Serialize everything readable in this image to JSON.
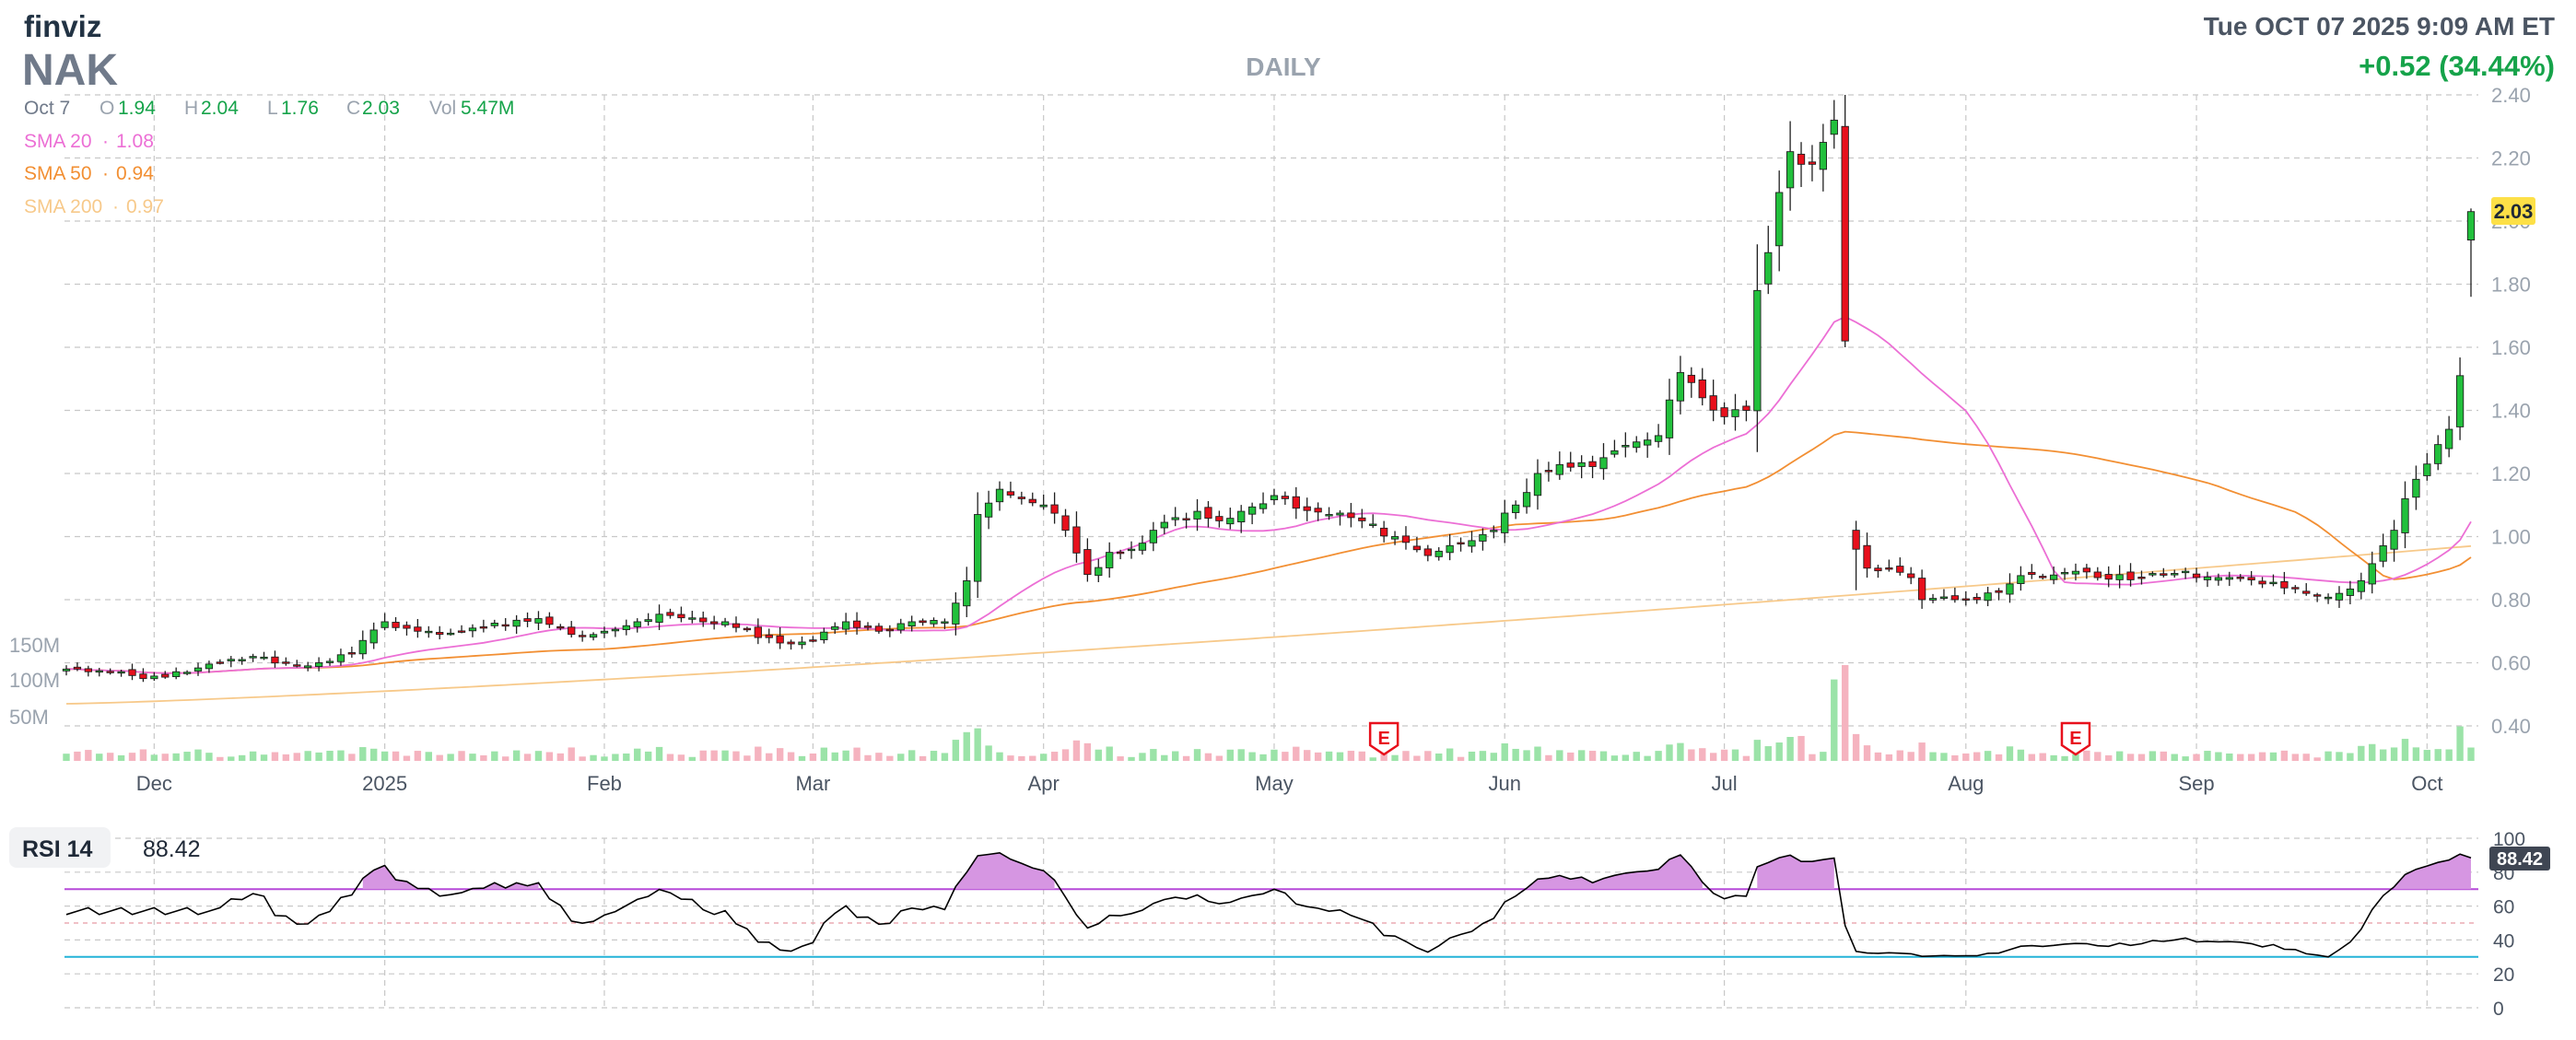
{
  "header": {
    "brand": "finviz",
    "ticker": "NAK",
    "timeframe": "DAILY",
    "datetime": "Tue OCT 07 2025 9:09 AM ET",
    "change": "+0.52 (34.44%)"
  },
  "ohlc": {
    "date": "Oct 7",
    "o_label": "O",
    "o": "1.94",
    "h_label": "H",
    "h": "2.04",
    "l_label": "L",
    "l": "1.76",
    "c_label": "C",
    "c": "2.03",
    "vol_label": "Vol",
    "vol": "5.47M"
  },
  "legend": {
    "sma20_label": "SMA 20",
    "sma20": "1.08",
    "sma50_label": "SMA 50",
    "sma50": "0.94",
    "sma200_label": "SMA 200",
    "sma200": "0.97",
    "sep": "·"
  },
  "rsi": {
    "label": "RSI 14",
    "value": "88.42",
    "ticks": [
      "100",
      "80",
      "60",
      "40",
      "20",
      "0"
    ]
  },
  "earnings_marker": "E",
  "colors": {
    "up": "#22c03c",
    "down": "#e8101c",
    "sma20": "#ec6fd5",
    "sma50": "#f28f33",
    "sma200": "#f7c98a",
    "vol_up": "#9be3a8",
    "vol_down": "#f5b3bf",
    "rsi_line": "#000000",
    "rsi_fill": "#d696e2",
    "rsi_70": "#b64ad8",
    "rsi_30": "#23b3d8",
    "grid": "#c8c8c8",
    "price_tag": "#fde047",
    "accent_green": "#16a34a",
    "text_gray": "#707a8a"
  },
  "chart_data": [
    {
      "type": "candlestick",
      "title": "NAK",
      "ylim": [
        0.3,
        2.4
      ],
      "y_ticks": [
        "2.40",
        "2.20",
        "2.00",
        "1.80",
        "1.60",
        "1.40",
        "1.20",
        "1.00",
        "0.80",
        "0.60",
        "0.40"
      ],
      "x_tick_labels": [
        "Dec",
        "2025",
        "Feb",
        "Mar",
        "Apr",
        "May",
        "Jun",
        "Jul",
        "Aug",
        "Sep",
        "Oct"
      ],
      "volume_ticks": [
        "150M",
        "100M",
        "50M"
      ],
      "last_price": "2.03",
      "earnings_dates": [
        "May 15 2025",
        "Aug 15 2025"
      ],
      "anchors": [
        [
          "Nov 19 2024",
          0.58
        ],
        [
          "Nov 25 2024",
          0.57
        ],
        [
          "Nov 29 2024",
          0.55
        ],
        [
          "Dec 5 2024",
          0.57
        ],
        [
          "Dec 10 2024",
          0.6
        ],
        [
          "Dec 13 2024",
          0.62
        ],
        [
          "Dec 19 2024",
          0.59
        ],
        [
          "Dec 23 2024",
          0.6
        ],
        [
          "Dec 27 2024",
          0.63
        ],
        [
          "Jan 2 2025",
          0.73
        ],
        [
          "Jan 7 2025",
          0.7
        ],
        [
          "Jan 10 2025",
          0.69
        ],
        [
          "Jan 15 2025",
          0.71
        ],
        [
          "Jan 20 2025",
          0.72
        ],
        [
          "Jan 24 2025",
          0.74
        ],
        [
          "Jan 29 2025",
          0.69
        ],
        [
          "Feb 3 2025",
          0.7
        ],
        [
          "Feb 6 2025",
          0.73
        ],
        [
          "Feb 11 2025",
          0.75
        ],
        [
          "Feb 14 2025",
          0.73
        ],
        [
          "Feb 19 2025",
          0.73
        ],
        [
          "Feb 24 2025",
          0.68
        ],
        [
          "Feb 27 2025",
          0.66
        ],
        [
          "Mar 3 2025",
          0.67
        ],
        [
          "Mar 6 2025",
          0.73
        ],
        [
          "Mar 11 2025",
          0.7
        ],
        [
          "Mar 14 2025",
          0.73
        ],
        [
          "Mar 19 2025",
          0.73
        ],
        [
          "Mar 21 2025",
          0.86
        ],
        [
          "Mar 24 2025",
          1.07
        ],
        [
          "Mar 26 2025",
          1.15
        ],
        [
          "Mar 28 2025",
          1.12
        ],
        [
          "Apr 1 2025",
          1.1
        ],
        [
          "Apr 3 2025",
          1.02
        ],
        [
          "Apr 7 2025",
          0.88
        ],
        [
          "Apr 9 2025",
          0.95
        ],
        [
          "Apr 11 2025",
          0.96
        ],
        [
          "Apr 15 2025",
          1.02
        ],
        [
          "Apr 17 2025",
          1.06
        ],
        [
          "Apr 22 2025",
          1.08
        ],
        [
          "Apr 24 2025",
          1.05
        ],
        [
          "Apr 28 2025",
          1.08
        ],
        [
          "May 1 2025",
          1.13
        ],
        [
          "May 5 2025",
          1.09
        ],
        [
          "May 8 2025",
          1.07
        ],
        [
          "May 13 2025",
          1.05
        ],
        [
          "May 16 2025",
          1.0
        ],
        [
          "May 21 2025",
          0.94
        ],
        [
          "May 27 2025",
          0.98
        ],
        [
          "May 30 2025",
          1.02
        ],
        [
          "Jun 3 2025",
          1.1
        ],
        [
          "Jun 5 2025",
          1.2
        ],
        [
          "Jun 10 2025",
          1.22
        ],
        [
          "Jun 13 2025",
          1.25
        ],
        [
          "Jun 18 2025",
          1.3
        ],
        [
          "Jun 23 2025",
          1.32
        ],
        [
          "Jun 25 2025",
          1.52
        ],
        [
          "Jun 27 2025",
          1.44
        ],
        [
          "Jul 1 2025",
          1.38
        ],
        [
          "Jul 3 2025",
          1.4
        ],
        [
          "Jul 7 2025",
          1.78
        ],
        [
          "Jul 8 2025",
          1.9
        ],
        [
          "Jul 10 2025",
          2.22
        ],
        [
          "Jul 11 2025",
          2.18
        ],
        [
          "Jul 14 2025",
          2.18
        ],
        [
          "Jul 16 2025",
          2.32
        ],
        [
          "Jul 17 2025",
          1.62
        ],
        [
          "Jul 18 2025",
          0.96
        ],
        [
          "Jul 21 2025",
          0.9
        ],
        [
          "Jul 23 2025",
          0.9
        ],
        [
          "Jul 25 2025",
          0.87
        ],
        [
          "Jul 28 2025",
          0.8
        ],
        [
          "Jul 31 2025",
          0.8
        ],
        [
          "Aug 4 2025",
          0.8
        ],
        [
          "Aug 7 2025",
          0.85
        ],
        [
          "Aug 11 2025",
          0.88
        ],
        [
          "Aug 15 2025",
          0.89
        ],
        [
          "Aug 19 2025",
          0.87
        ],
        [
          "Aug 25 2025",
          0.87
        ],
        [
          "Aug 29 2025",
          0.89
        ],
        [
          "Sep 4 2025",
          0.87
        ],
        [
          "Sep 10 2025",
          0.85
        ],
        [
          "Sep 16 2025",
          0.82
        ],
        [
          "Sep 19 2025",
          0.82
        ],
        [
          "Sep 23 2025",
          0.86
        ],
        [
          "Sep 26 2025",
          1.02
        ],
        [
          "Sep 29 2025",
          1.12
        ],
        [
          "Oct 1 2025",
          1.23
        ],
        [
          "Oct 3 2025",
          1.34
        ],
        [
          "Oct 6 2025",
          1.51
        ],
        [
          "Oct 7 2025",
          2.03
        ]
      ],
      "last_candle": {
        "date": "Oct 7 2025",
        "open": 1.94,
        "high": 2.04,
        "low": 1.76,
        "close": 2.03,
        "volume_m": 5.47
      },
      "series": [
        {
          "name": "SMA 20",
          "last": 1.08
        },
        {
          "name": "SMA 50",
          "last": 0.94
        },
        {
          "name": "SMA 200",
          "last": 0.97
        }
      ]
    },
    {
      "type": "line",
      "title": "RSI 14",
      "ylim": [
        0,
        100
      ],
      "y_ticks": [
        "100",
        "80",
        "60",
        "40",
        "20",
        "0"
      ],
      "reference_lines": [
        70,
        50,
        30
      ],
      "last": 88.42
    }
  ]
}
